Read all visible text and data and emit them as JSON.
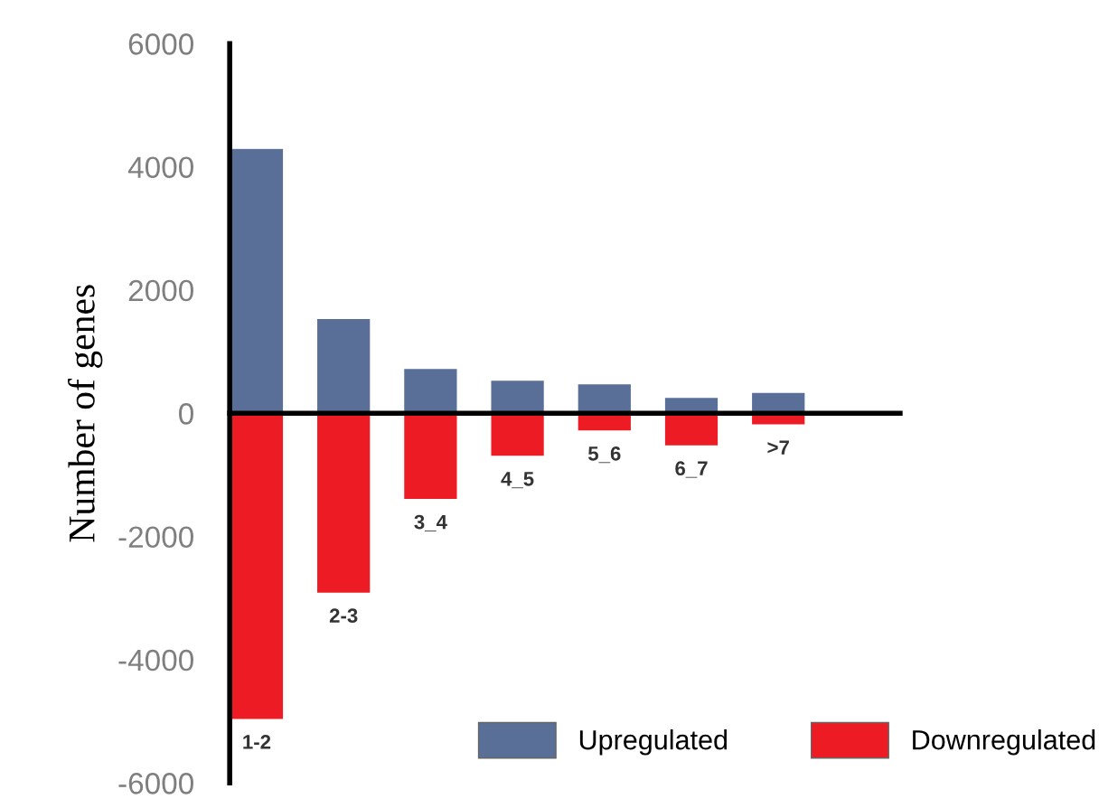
{
  "chart_data": {
    "type": "bar",
    "ylabel": "Number of genes",
    "stacked": true,
    "categories": [
      "1-2",
      "2-3",
      "3_4",
      "4_5",
      "5_6",
      "6_7",
      ">7"
    ],
    "series": [
      {
        "name": "Upregulated",
        "color": "#5a6f98",
        "values": [
          4300,
          1540,
          730,
          540,
          480,
          260,
          340
        ]
      },
      {
        "name": "Downregulated",
        "color": "#ed1c24",
        "values": [
          -4970,
          -2920,
          -1400,
          -700,
          -290,
          -530,
          -190
        ]
      }
    ],
    "ylim": [
      -6000,
      6000
    ],
    "yticks": [
      -6000,
      -4000,
      -2000,
      0,
      2000,
      4000,
      6000
    ],
    "grid": false,
    "legend": "bottom right"
  }
}
